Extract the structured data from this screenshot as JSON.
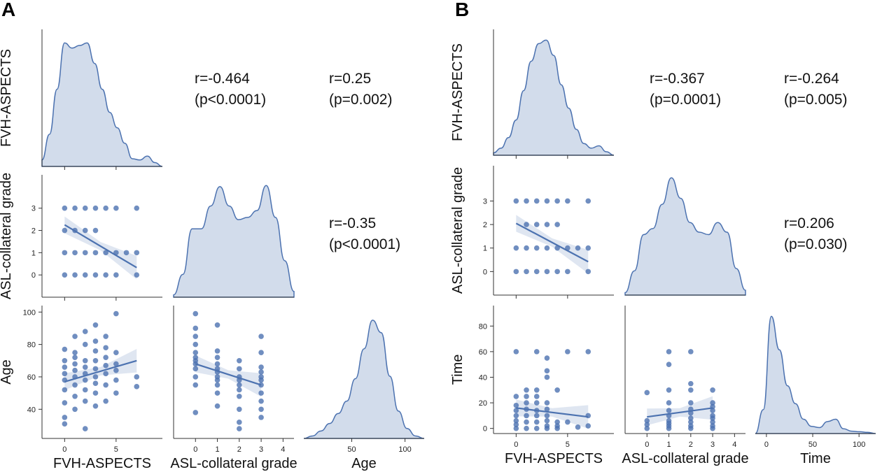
{
  "chart_data": [
    {
      "panel": "A",
      "type": "scatter",
      "variables": [
        "FVH-ASPECTS",
        "ASL-collateral grade",
        "Age"
      ],
      "annotations": [
        {
          "line1": "r=-0.464",
          "line2": "(p<0.0001)"
        },
        {
          "line1": "r=0.25",
          "line2": "(p=0.002)"
        },
        {
          "line1": "r=-0.35",
          "line2": "(p<0.0001)"
        }
      ],
      "axes": {
        "FVH-ASPECTS": {
          "range": [
            -2.2,
            9.5
          ],
          "ticks": [
            0,
            5
          ]
        },
        "ASL-collateral grade": {
          "range": [
            -1.0,
            4.5
          ],
          "ticks": [
            0,
            1,
            2,
            3,
            4
          ],
          "yticks": [
            0,
            1,
            2,
            3
          ]
        },
        "Age": {
          "range": [
            5,
            118
          ],
          "ticks": [
            50,
            100
          ],
          "yrange": [
            22,
            104
          ],
          "yticks": [
            40,
            60,
            80,
            100
          ]
        }
      },
      "diagonal_kde": [
        [
          0.05,
          0.25,
          0.6,
          0.96,
          0.92,
          0.94,
          0.96,
          0.8,
          0.6,
          0.42,
          0.3,
          0.18,
          0.06,
          0.05,
          0.08,
          0.03,
          0
        ],
        [
          0.02,
          0.2,
          0.6,
          0.6,
          0.8,
          0.97,
          0.8,
          0.68,
          0.7,
          0.76,
          0.98,
          0.7,
          0.32,
          0.05
        ],
        [
          0,
          0.02,
          0.06,
          0.12,
          0.2,
          0.3,
          0.48,
          0.72,
          0.95,
          0.85,
          0.5,
          0.22,
          0.08,
          0.02,
          0
        ]
      ],
      "scatter": [
        {
          "xvar": "FVH-ASPECTS",
          "yvar": "ASL-collateral grade",
          "x": [
            0,
            1,
            2,
            3,
            4,
            5,
            7,
            0,
            1,
            2,
            3,
            0,
            1,
            2,
            3,
            4,
            5,
            6,
            7,
            0,
            1,
            2,
            3,
            4,
            5,
            7
          ],
          "y": [
            3,
            3,
            3,
            3,
            3,
            3,
            3,
            2,
            2,
            2,
            2,
            1,
            1,
            1,
            1,
            1,
            1,
            1,
            1,
            0,
            0,
            0,
            0,
            0,
            0,
            0
          ],
          "fit": [
            [
              0,
              2.25
            ],
            [
              7,
              0.33
            ]
          ]
        },
        {
          "xvar": "FVH-ASPECTS",
          "yvar": "Age",
          "x": [
            0,
            0,
            0,
            0,
            0,
            0,
            0,
            0,
            0,
            1,
            1,
            1,
            1,
            1,
            1,
            1,
            1,
            1,
            2,
            2,
            2,
            2,
            2,
            2,
            2,
            2,
            2,
            3,
            3,
            3,
            3,
            3,
            3,
            3,
            3,
            3,
            4,
            4,
            4,
            4,
            4,
            4,
            4,
            5,
            5,
            5,
            5,
            5,
            5,
            7,
            7
          ],
          "y": [
            31,
            35,
            44,
            52,
            58,
            62,
            66,
            70,
            77,
            40,
            48,
            55,
            60,
            64,
            68,
            72,
            75,
            85,
            28,
            45,
            52,
            58,
            62,
            66,
            70,
            80,
            88,
            42,
            50,
            56,
            60,
            65,
            70,
            76,
            82,
            92,
            45,
            55,
            62,
            67,
            72,
            78,
            85,
            50,
            58,
            64,
            68,
            75,
            99,
            54,
            60
          ],
          "fit": [
            [
              0,
              57
            ],
            [
              7,
              70
            ]
          ]
        },
        {
          "xvar": "ASL-collateral grade",
          "yvar": "Age",
          "x": [
            0,
            0,
            0,
            0,
            0,
            0,
            0,
            0,
            0,
            0,
            0,
            0,
            1,
            1,
            1,
            1,
            1,
            1,
            1,
            1,
            1,
            1,
            1,
            2,
            2,
            2,
            2,
            2,
            2,
            2,
            2,
            2,
            2,
            3,
            3,
            3,
            3,
            3,
            3,
            3,
            3,
            3,
            3,
            3
          ],
          "y": [
            38,
            55,
            60,
            65,
            68,
            70,
            72,
            75,
            80,
            85,
            90,
            99,
            42,
            50,
            55,
            58,
            60,
            63,
            65,
            68,
            72,
            76,
            92,
            28,
            32,
            40,
            48,
            52,
            55,
            58,
            60,
            65,
            70,
            35,
            40,
            45,
            50,
            55,
            58,
            60,
            63,
            66,
            75,
            85
          ],
          "fit": [
            [
              0,
              68
            ],
            [
              3,
              55
            ]
          ]
        }
      ]
    },
    {
      "panel": "B",
      "type": "scatter",
      "variables": [
        "FVH-ASPECTS",
        "ASL-collateral grade",
        "Time"
      ],
      "annotations": [
        {
          "line1": "r=-0.367",
          "line2": "(p=0.0001)"
        },
        {
          "line1": "r=-0.264",
          "line2": "(p=0.005)"
        },
        {
          "line1": "r=0.206",
          "line2": "(p=0.030)"
        }
      ],
      "axes": {
        "FVH-ASPECTS": {
          "range": [
            -2.2,
            9.5
          ],
          "ticks": [
            0,
            5
          ]
        },
        "ASL-collateral grade": {
          "range": [
            -1.0,
            4.5
          ],
          "ticks": [
            0,
            1,
            2,
            3,
            4
          ],
          "yticks": [
            0,
            1,
            2,
            3
          ]
        },
        "Time": {
          "range": [
            -12,
            118
          ],
          "ticks": [
            0,
            50,
            100
          ],
          "yrange": [
            -4,
            96
          ],
          "yticks": [
            0,
            20,
            40,
            60,
            80
          ]
        }
      },
      "diagonal_kde": [
        [
          0.02,
          0.06,
          0.15,
          0.3,
          0.55,
          0.8,
          0.95,
          0.98,
          0.85,
          0.6,
          0.4,
          0.22,
          0.1,
          0.06,
          0.08,
          0.03,
          0
        ],
        [
          0.02,
          0.2,
          0.5,
          0.55,
          0.75,
          0.97,
          0.8,
          0.6,
          0.52,
          0.5,
          0.6,
          0.52,
          0.22,
          0.04
        ],
        [
          0,
          0.2,
          0.98,
          0.7,
          0.4,
          0.25,
          0.12,
          0.06,
          0.05,
          0.1,
          0.12,
          0.04,
          0.02,
          0.015,
          0.01,
          0
        ]
      ],
      "scatter": [
        {
          "xvar": "FVH-ASPECTS",
          "yvar": "ASL-collateral grade",
          "x": [
            0,
            1,
            2,
            3,
            4,
            5,
            7,
            1,
            2,
            3,
            4,
            0,
            1,
            2,
            3,
            4,
            5,
            6,
            7,
            0,
            1,
            2,
            3,
            4,
            5,
            7
          ],
          "y": [
            3,
            3,
            3,
            3,
            3,
            3,
            3,
            2,
            2,
            2,
            2,
            1,
            1,
            1,
            1,
            1,
            1,
            1,
            1,
            0,
            0,
            0,
            0,
            0,
            0,
            0
          ],
          "fit": [
            [
              0,
              2.05
            ],
            [
              7,
              0.42
            ]
          ]
        },
        {
          "xvar": "FVH-ASPECTS",
          "yvar": "Time",
          "x": [
            0,
            0,
            0,
            0,
            0,
            0,
            0,
            0,
            1,
            1,
            1,
            1,
            1,
            1,
            1,
            2,
            2,
            2,
            2,
            2,
            2,
            2,
            2,
            3,
            3,
            3,
            3,
            3,
            3,
            3,
            3,
            3,
            4,
            4,
            4,
            4,
            5,
            5,
            6,
            7,
            7,
            7
          ],
          "y": [
            0,
            3,
            6,
            10,
            14,
            18,
            25,
            60,
            0,
            5,
            10,
            15,
            20,
            25,
            30,
            0,
            5,
            10,
            14,
            20,
            25,
            30,
            60,
            0,
            2,
            6,
            10,
            15,
            20,
            40,
            45,
            55,
            0,
            2,
            5,
            30,
            5,
            60,
            1,
            2,
            10,
            60
          ],
          "fit": [
            [
              0,
              16
            ],
            [
              7,
              9
            ]
          ]
        },
        {
          "xvar": "ASL-collateral grade",
          "yvar": "Time",
          "x": [
            0,
            0,
            0,
            0,
            1,
            1,
            1,
            1,
            1,
            1,
            1,
            1,
            1,
            1,
            2,
            2,
            2,
            2,
            2,
            2,
            2,
            2,
            2,
            2,
            3,
            3,
            3,
            3,
            3,
            3,
            3,
            3,
            3
          ],
          "y": [
            0,
            3,
            6,
            28,
            0,
            2,
            4,
            6,
            10,
            14,
            20,
            30,
            50,
            60,
            0,
            2,
            5,
            8,
            12,
            15,
            20,
            30,
            35,
            60,
            0,
            2,
            5,
            8,
            10,
            14,
            17,
            20,
            30
          ],
          "fit": [
            [
              0,
              9
            ],
            [
              3,
              16
            ]
          ]
        }
      ]
    }
  ]
}
